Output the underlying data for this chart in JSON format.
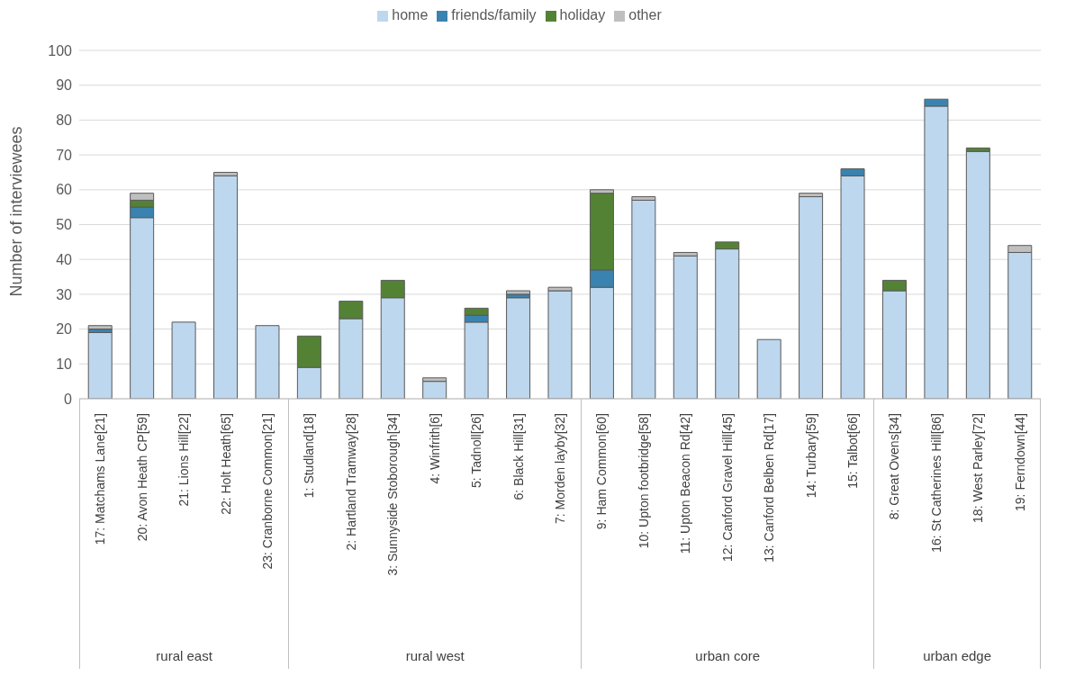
{
  "chart_data": {
    "type": "bar",
    "stacked": true,
    "ylabel": "Number of interviewees",
    "categories": [
      "17: Matchams Lane[21]",
      "20: Avon Heath CP[59]",
      "21: Lions Hill[22]",
      "22: Holt Heath[65]",
      "23: Cranborne Common[21]",
      "1: Studland[18]",
      "2: Hartland Tramway[28]",
      "3: Sunnyside Stoborough[34]",
      "4: Winfrith[6]",
      "5: Tadnoll[26]",
      "6: Black Hill[31]",
      "7: Morden layby[32]",
      "9: Ham Common[60]",
      "10: Upton footbridge[58]",
      "11: Upton Beacon Rd[42]",
      "12: Canford Gravel Hill[45]",
      "13: Canford Belben Rd[17]",
      "14: Turbary[59]",
      "15: Talbot[66]",
      "8: Great Ovens[34]",
      "16: St Catherines Hill[86]",
      "18: West Parley[72]",
      "19: Ferndown[44]"
    ],
    "series": [
      {
        "name": "home",
        "color": "#bdd7ee",
        "values": [
          19,
          52,
          22,
          64,
          21,
          9,
          23,
          29,
          5,
          22,
          29,
          31,
          32,
          57,
          41,
          43,
          17,
          58,
          64,
          31,
          84,
          71,
          42
        ]
      },
      {
        "name": "friends/family",
        "color": "#3a83b0",
        "values": [
          1,
          3,
          0,
          0,
          0,
          0,
          0,
          0,
          0,
          2,
          1,
          0,
          5,
          0,
          0,
          0,
          0,
          0,
          2,
          0,
          2,
          0,
          0
        ]
      },
      {
        "name": "holiday",
        "color": "#548235",
        "values": [
          0,
          2,
          0,
          0,
          0,
          9,
          5,
          5,
          0,
          2,
          0,
          0,
          22,
          0,
          0,
          2,
          0,
          0,
          0,
          3,
          0,
          1,
          0
        ]
      },
      {
        "name": "other",
        "color": "#bfbfbf",
        "values": [
          1,
          2,
          0,
          1,
          0,
          0,
          0,
          0,
          1,
          0,
          1,
          1,
          1,
          1,
          1,
          0,
          0,
          1,
          0,
          0,
          0,
          0,
          2
        ]
      }
    ],
    "ylim": [
      0,
      100
    ],
    "yticks": [
      0,
      10,
      20,
      30,
      40,
      50,
      60,
      70,
      80,
      90,
      100
    ],
    "grid": "y",
    "legend": "top",
    "annotations": [
      "rural east",
      "rural west",
      "urban core",
      "urban edge"
    ]
  }
}
